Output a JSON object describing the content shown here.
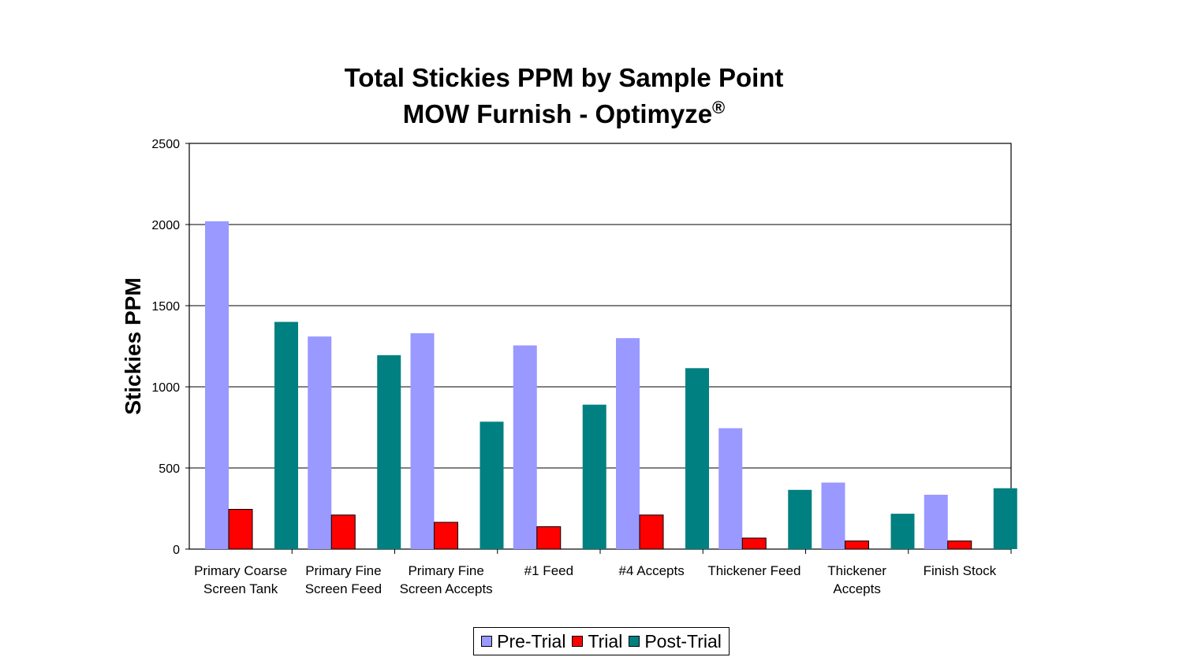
{
  "chart_data": {
    "type": "bar",
    "title": "Total Stickies PPM by Sample Point",
    "subtitle": "MOW Furnish - Optimyze",
    "subtitle_mark": "®",
    "ylabel": "Stickies PPM",
    "xlabel": "",
    "ylim": [
      0,
      2500
    ],
    "yticks": [
      "0",
      "500",
      "1000",
      "1500",
      "2000",
      "2500"
    ],
    "grid": true,
    "legend_position": "bottom",
    "categories": [
      [
        "Primary Coarse",
        "Screen Tank"
      ],
      [
        "Primary Fine",
        "Screen Feed"
      ],
      [
        "Primary Fine",
        "Screen Accepts"
      ],
      [
        "#1 Feed"
      ],
      [
        "#4 Accepts"
      ],
      [
        "Thickener Feed"
      ],
      [
        "Thickener",
        "Accepts"
      ],
      [
        "Finish Stock"
      ]
    ],
    "series": [
      {
        "name": "Pre-Trial",
        "color": "#9999ff",
        "values": [
          2020,
          1310,
          1330,
          1255,
          1300,
          745,
          410,
          335
        ]
      },
      {
        "name": "Trial",
        "color": "#ff0000",
        "values": [
          245,
          210,
          165,
          138,
          210,
          68,
          50,
          50
        ]
      },
      {
        "name": "Post-Trial",
        "color": "#008080",
        "values": [
          1400,
          1195,
          785,
          890,
          1115,
          365,
          218,
          375
        ]
      }
    ]
  }
}
